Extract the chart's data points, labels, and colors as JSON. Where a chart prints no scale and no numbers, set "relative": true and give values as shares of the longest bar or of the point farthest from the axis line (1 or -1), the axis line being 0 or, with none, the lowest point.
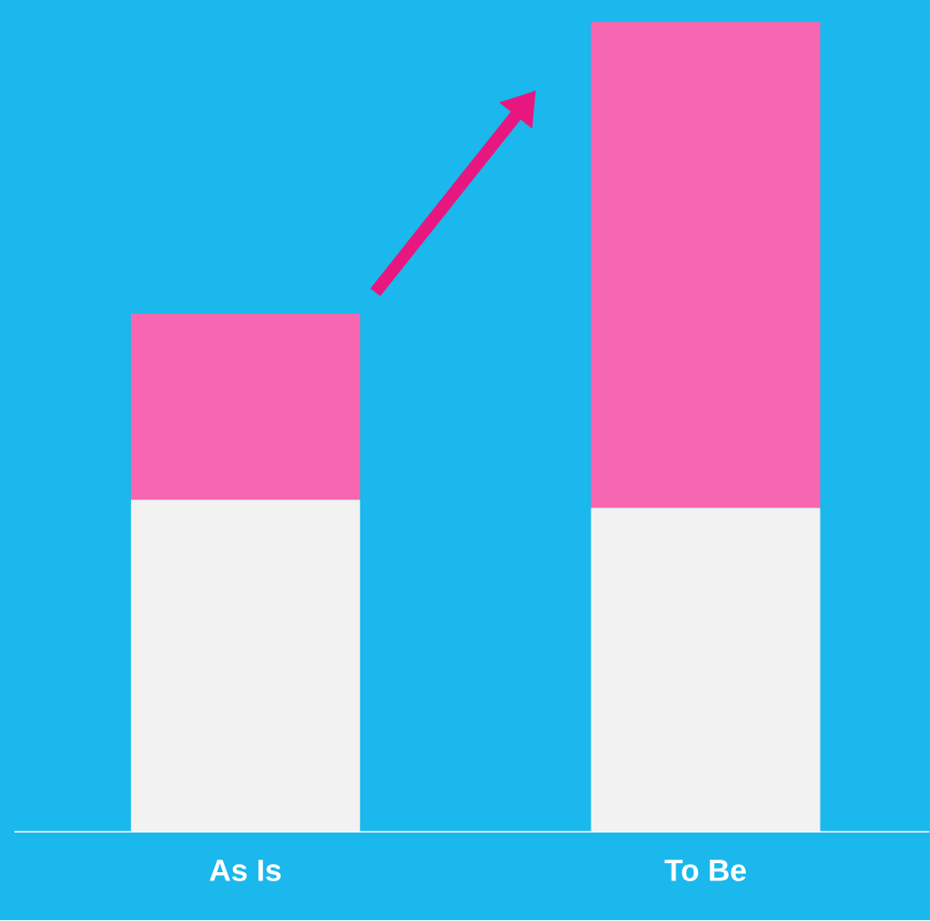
{
  "chart_data": {
    "type": "bar",
    "stacked": true,
    "relative": true,
    "categories": [
      "As Is",
      "To Be"
    ],
    "series": [
      {
        "color": "#f2f2f2",
        "values": [
          0.41,
          0.4
        ]
      },
      {
        "color": "#f766b0",
        "values": [
          0.23,
          0.6
        ]
      }
    ]
  }
}
